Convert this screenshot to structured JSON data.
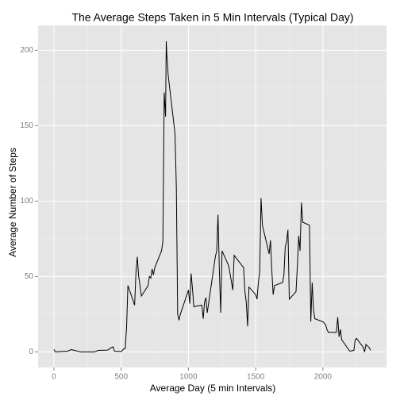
{
  "chart_data": {
    "type": "line",
    "title": "The Average Steps Taken in 5 Min Intervals (Typical Day)",
    "x_label": "Average Day (5 min Intervals)",
    "y_label": "Average Number of Steps",
    "color": "#000000",
    "x": [
      0,
      10,
      20,
      50,
      100,
      130,
      200,
      300,
      330,
      400,
      420,
      440,
      450,
      500,
      520,
      530,
      540,
      550,
      600,
      610,
      620,
      630,
      640,
      650,
      700,
      710,
      720,
      730,
      740,
      750,
      800,
      810,
      820,
      830,
      835,
      840,
      850,
      900,
      910,
      920,
      930,
      940,
      1000,
      1010,
      1020,
      1030,
      1040,
      1100,
      1110,
      1120,
      1130,
      1140,
      1200,
      1210,
      1220,
      1230,
      1240,
      1250,
      1300,
      1330,
      1340,
      1400,
      1410,
      1420,
      1430,
      1440,
      1450,
      1500,
      1510,
      1520,
      1530,
      1540,
      1550,
      1600,
      1610,
      1620,
      1630,
      1640,
      1700,
      1710,
      1720,
      1730,
      1740,
      1750,
      1800,
      1810,
      1820,
      1830,
      1840,
      1850,
      1900,
      1910,
      1920,
      1930,
      1940,
      2000,
      2010,
      2020,
      2030,
      2040,
      2100,
      2110,
      2120,
      2130,
      2140,
      2200,
      2230,
      2240,
      2250,
      2300,
      2310,
      2320,
      2330,
      2340,
      2355
    ],
    "values": [
      1.7,
      0.1,
      0.1,
      0.3,
      0.5,
      1.5,
      0,
      0,
      1,
      1.2,
      2.5,
      3.4,
      0.5,
      0.3,
      2,
      2.2,
      16,
      44,
      31,
      53,
      63,
      50,
      44,
      37,
      44,
      50,
      49,
      55,
      51,
      56,
      67,
      73,
      172,
      156,
      206,
      196,
      183,
      145,
      110,
      25,
      21,
      25,
      41,
      32,
      52,
      42,
      30,
      31,
      22,
      33,
      36,
      26,
      63,
      67,
      91,
      54,
      26,
      67,
      57,
      41,
      64,
      57,
      56,
      40,
      33,
      17,
      43,
      38,
      35,
      46,
      53,
      102,
      84,
      65,
      74,
      54,
      38,
      44,
      46,
      51,
      70,
      73,
      81,
      35,
      40,
      57,
      77,
      67,
      99,
      86,
      84,
      20,
      46,
      28,
      22,
      20,
      19,
      18,
      15,
      13,
      13,
      23,
      10,
      15,
      8,
      0.5,
      1,
      8,
      9,
      3,
      0,
      5,
      4,
      3.3,
      1.1
    ],
    "xlim": [
      -117.75,
      2472.75
    ],
    "xticks": [
      0,
      500,
      1000,
      1500,
      2000
    ],
    "xminor": [
      250,
      750,
      1250,
      1750,
      2250
    ],
    "ylim": [
      -10.3,
      216.5
    ],
    "yticks": [
      0,
      50,
      100,
      150,
      200
    ],
    "yminor": [
      25,
      75,
      125,
      175
    ],
    "grid": true
  }
}
